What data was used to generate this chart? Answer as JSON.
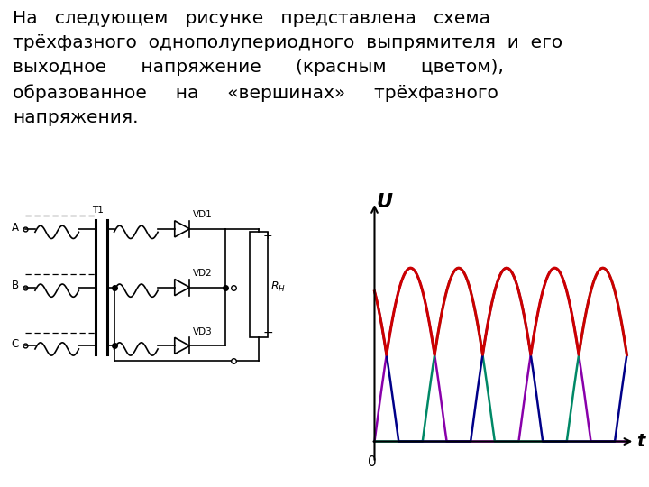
{
  "wave_colors": [
    "#8800aa",
    "#008866",
    "#000088"
  ],
  "envelope_color": "#cc0000",
  "background_color": "#ffffff",
  "text_color": "#000000",
  "font_size_text": 14.5,
  "graph_xlabel": "t",
  "graph_ylabel": "U",
  "origin_label": "0",
  "text_block": "На   следующем   рисунке   представлена   схема\nтрёхфазного  однополупериодного  выпрямителя  и  его\nвыходное      напряжение      (красным      цветом),\nобразованное     на     «вершинах»     трёхфазного\nнапряжения."
}
